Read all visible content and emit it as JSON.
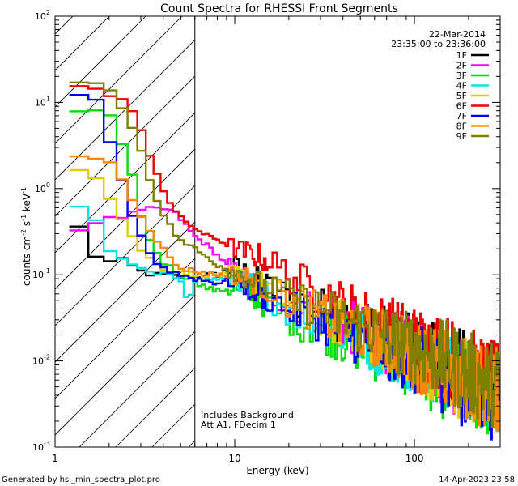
{
  "chart_data": {
    "type": "line",
    "title": "Count Spectra for RHESSI Front Segments",
    "xlabel": "Energy (keV)",
    "ylabel_parts": {
      "base": "counts cm",
      "exp1": "-2",
      "mid": " s",
      "exp2": "-1",
      "tail": " keV",
      "exp3": "-1"
    },
    "x_scale": "log",
    "y_scale": "log",
    "xlim": [
      1,
      300
    ],
    "ylim": [
      0.001,
      100
    ],
    "x_ticks": [
      {
        "value": 1,
        "label": "1"
      },
      {
        "value": 10,
        "label": "10"
      },
      {
        "value": 100,
        "label": "100"
      }
    ],
    "y_ticks": [
      {
        "value": 0.001,
        "base": "10",
        "exp": "-3"
      },
      {
        "value": 0.01,
        "base": "10",
        "exp": "-2"
      },
      {
        "value": 0.1,
        "base": "10",
        "exp": "-1"
      },
      {
        "value": 1,
        "base": "10",
        "exp": "0"
      },
      {
        "value": 10,
        "base": "10",
        "exp": "1"
      },
      {
        "value": 100,
        "base": "10",
        "exp": "2"
      }
    ],
    "date": "22-Mar-2014",
    "time_range": "23:35:00 to 23:36:00",
    "annotations": [
      "Includes Background",
      "Att A1, FDecim 1"
    ],
    "hatched_region_max_kev": 6,
    "footer_left": "Generated by hsi_min_spectra_plot.pro",
    "footer_right": "14-Apr-2023 23:58",
    "series": [
      {
        "name": "1F",
        "color": "#000000",
        "key": [
          [
            1.2,
            0.52
          ],
          [
            1.35,
            0.35
          ],
          [
            1.5,
            0.48
          ],
          [
            1.7,
            0.16
          ],
          [
            2,
            0.14
          ],
          [
            2.3,
            0.15
          ],
          [
            2.6,
            0.13
          ],
          [
            3,
            0.11
          ],
          [
            3.5,
            0.1
          ],
          [
            4,
            0.1
          ],
          [
            5,
            0.095
          ],
          [
            6,
            0.095
          ],
          [
            7,
            0.1
          ],
          [
            8,
            0.1
          ],
          [
            9,
            0.11
          ],
          [
            10,
            0.13
          ],
          [
            12,
            0.1
          ],
          [
            15,
            0.075
          ],
          [
            20,
            0.055
          ],
          [
            30,
            0.04
          ],
          [
            40,
            0.03
          ],
          [
            60,
            0.02
          ],
          [
            80,
            0.016
          ],
          [
            100,
            0.013
          ],
          [
            150,
            0.009
          ],
          [
            200,
            0.007
          ],
          [
            300,
            0.005
          ]
        ]
      },
      {
        "name": "2F",
        "color": "#ff00ff",
        "key": [
          [
            1.2,
            0.3
          ],
          [
            1.35,
            0.33
          ],
          [
            1.5,
            0.4
          ],
          [
            2,
            0.44
          ],
          [
            2.5,
            0.48
          ],
          [
            3,
            0.55
          ],
          [
            3.5,
            0.58
          ],
          [
            4,
            0.58
          ],
          [
            4.5,
            0.55
          ],
          [
            5,
            0.45
          ],
          [
            5.5,
            0.35
          ],
          [
            6,
            0.28
          ],
          [
            7,
            0.22
          ],
          [
            8,
            0.17
          ],
          [
            9,
            0.13
          ],
          [
            10,
            0.11
          ],
          [
            12,
            0.085
          ],
          [
            15,
            0.065
          ],
          [
            20,
            0.05
          ],
          [
            30,
            0.035
          ],
          [
            40,
            0.026
          ],
          [
            60,
            0.019
          ],
          [
            80,
            0.015
          ],
          [
            100,
            0.012
          ],
          [
            150,
            0.008
          ],
          [
            200,
            0.006
          ],
          [
            300,
            0.0045
          ]
        ]
      },
      {
        "name": "3F",
        "color": "#00dd00",
        "key": [
          [
            1.2,
            6.8
          ],
          [
            1.5,
            8
          ],
          [
            2,
            7
          ],
          [
            2.3,
            4
          ],
          [
            2.6,
            2
          ],
          [
            2.8,
            1
          ],
          [
            3,
            0.5
          ],
          [
            3.3,
            0.28
          ],
          [
            3.7,
            0.18
          ],
          [
            4,
            0.14
          ],
          [
            5,
            0.1
          ],
          [
            6,
            0.085
          ],
          [
            7,
            0.07
          ],
          [
            8,
            0.065
          ],
          [
            10,
            0.07
          ],
          [
            12,
            0.06
          ],
          [
            15,
            0.045
          ],
          [
            20,
            0.032
          ],
          [
            30,
            0.024
          ],
          [
            40,
            0.018
          ],
          [
            60,
            0.013
          ],
          [
            80,
            0.011
          ],
          [
            100,
            0.009
          ],
          [
            150,
            0.006
          ],
          [
            200,
            0.005
          ],
          [
            300,
            0.0035
          ]
        ]
      },
      {
        "name": "4F",
        "color": "#00e5e5",
        "key": [
          [
            1.2,
            0.8
          ],
          [
            1.5,
            0.55
          ],
          [
            1.7,
            0.4
          ],
          [
            2,
            0.2
          ],
          [
            2.3,
            0.15
          ],
          [
            2.6,
            0.13
          ],
          [
            3,
            0.12
          ],
          [
            3.5,
            0.1
          ],
          [
            4,
            0.1
          ],
          [
            5,
            0.09
          ],
          [
            5.5,
            0.05
          ],
          [
            6,
            0.085
          ],
          [
            8,
            0.09
          ],
          [
            10,
            0.09
          ],
          [
            12,
            0.08
          ],
          [
            15,
            0.06
          ],
          [
            20,
            0.04
          ],
          [
            30,
            0.03
          ],
          [
            40,
            0.022
          ],
          [
            60,
            0.016
          ],
          [
            80,
            0.013
          ],
          [
            100,
            0.011
          ],
          [
            150,
            0.008
          ],
          [
            200,
            0.006
          ],
          [
            300,
            0.0045
          ]
        ]
      },
      {
        "name": "5F",
        "color": "#ddcc00",
        "key": [
          [
            1.2,
            1.9
          ],
          [
            1.5,
            1.6
          ],
          [
            1.7,
            1.3
          ],
          [
            2,
            0.8
          ],
          [
            2.3,
            0.5
          ],
          [
            2.6,
            0.3
          ],
          [
            3,
            0.2
          ],
          [
            3.5,
            0.14
          ],
          [
            4,
            0.12
          ],
          [
            5,
            0.11
          ],
          [
            6,
            0.1
          ],
          [
            8,
            0.1
          ],
          [
            10,
            0.1
          ],
          [
            12,
            0.09
          ],
          [
            15,
            0.07
          ],
          [
            20,
            0.05
          ],
          [
            30,
            0.035
          ],
          [
            40,
            0.026
          ],
          [
            60,
            0.019
          ],
          [
            80,
            0.015
          ],
          [
            100,
            0.012
          ],
          [
            150,
            0.008
          ],
          [
            200,
            0.006
          ],
          [
            300,
            0.0045
          ]
        ]
      },
      {
        "name": "6F",
        "color": "#ee0000",
        "key": [
          [
            1.2,
            17
          ],
          [
            1.5,
            16
          ],
          [
            2,
            12
          ],
          [
            2.5,
            10
          ],
          [
            3,
            5
          ],
          [
            3.5,
            2
          ],
          [
            4,
            1
          ],
          [
            4.5,
            0.6
          ],
          [
            5,
            0.45
          ],
          [
            6,
            0.35
          ],
          [
            7,
            0.28
          ],
          [
            8,
            0.26
          ],
          [
            10,
            0.2
          ],
          [
            12,
            0.18
          ],
          [
            15,
            0.15
          ],
          [
            20,
            0.1
          ],
          [
            30,
            0.06
          ],
          [
            40,
            0.045
          ],
          [
            60,
            0.028
          ],
          [
            80,
            0.022
          ],
          [
            100,
            0.017
          ],
          [
            150,
            0.012
          ],
          [
            200,
            0.008
          ],
          [
            250,
            0.006
          ],
          [
            300,
            0.005
          ]
        ]
      },
      {
        "name": "7F",
        "color": "#0000ee",
        "key": [
          [
            1.2,
            12
          ],
          [
            1.5,
            13
          ],
          [
            1.7,
            10
          ],
          [
            2,
            4
          ],
          [
            2.3,
            1.5
          ],
          [
            2.6,
            0.6
          ],
          [
            3,
            0.3
          ],
          [
            3.5,
            0.15
          ],
          [
            4,
            0.12
          ],
          [
            5,
            0.1
          ],
          [
            6,
            0.09
          ],
          [
            8,
            0.08
          ],
          [
            10,
            0.09
          ],
          [
            12,
            0.07
          ],
          [
            15,
            0.055
          ],
          [
            20,
            0.04
          ],
          [
            30,
            0.03
          ],
          [
            40,
            0.022
          ],
          [
            60,
            0.016
          ],
          [
            80,
            0.013
          ],
          [
            100,
            0.01
          ],
          [
            150,
            0.007
          ],
          [
            200,
            0.005
          ],
          [
            300,
            0.0035
          ]
        ]
      },
      {
        "name": "8F",
        "color": "#ff8800",
        "key": [
          [
            1.2,
            2.3
          ],
          [
            1.5,
            2.5
          ],
          [
            2,
            2
          ],
          [
            2.3,
            1.5
          ],
          [
            2.6,
            0.9
          ],
          [
            3,
            0.5
          ],
          [
            3.5,
            0.3
          ],
          [
            4,
            0.2
          ],
          [
            4.5,
            0.14
          ],
          [
            5,
            0.12
          ],
          [
            6,
            0.11
          ],
          [
            8,
            0.1
          ],
          [
            10,
            0.1
          ],
          [
            12,
            0.09
          ],
          [
            15,
            0.07
          ],
          [
            20,
            0.05
          ],
          [
            30,
            0.035
          ],
          [
            40,
            0.026
          ],
          [
            60,
            0.019
          ],
          [
            80,
            0.015
          ],
          [
            100,
            0.012
          ],
          [
            150,
            0.008
          ],
          [
            200,
            0.006
          ],
          [
            300,
            0.0045
          ]
        ]
      },
      {
        "name": "9F",
        "color": "#808000",
        "key": [
          [
            1.2,
            16
          ],
          [
            1.5,
            18
          ],
          [
            2,
            14
          ],
          [
            2.3,
            10
          ],
          [
            2.6,
            6
          ],
          [
            3,
            3
          ],
          [
            3.5,
            1
          ],
          [
            4,
            0.5
          ],
          [
            4.5,
            0.33
          ],
          [
            5,
            0.25
          ],
          [
            6,
            0.2
          ],
          [
            7,
            0.16
          ],
          [
            8,
            0.13
          ],
          [
            10,
            0.11
          ],
          [
            12,
            0.09
          ],
          [
            15,
            0.07
          ],
          [
            20,
            0.055
          ],
          [
            30,
            0.04
          ],
          [
            40,
            0.03
          ],
          [
            60,
            0.022
          ],
          [
            80,
            0.017
          ],
          [
            100,
            0.014
          ],
          [
            150,
            0.01
          ],
          [
            200,
            0.007
          ],
          [
            300,
            0.005
          ]
        ]
      }
    ]
  }
}
